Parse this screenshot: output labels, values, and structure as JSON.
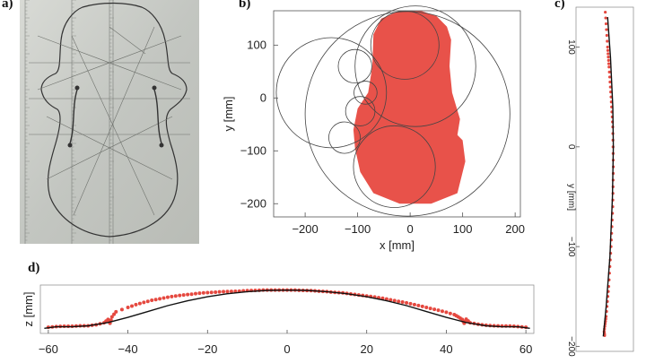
{
  "panels": {
    "a": {
      "label": "a)"
    },
    "b": {
      "label": "b)"
    },
    "c": {
      "label": "c)"
    },
    "d": {
      "label": "d)"
    }
  },
  "colors": {
    "data_red": "#e5483f",
    "fill_red": "#e8524a",
    "fit_line": "#111111",
    "paper": "#c9cbc6"
  },
  "chart_data": [
    {
      "id": "b",
      "type": "scatter",
      "description_kind": "shape-with-fitted-circles",
      "xlabel": "x [mm]",
      "ylabel": "y [mm]",
      "xlim": [
        -260,
        210
      ],
      "ylim": [
        -225,
        165
      ],
      "xticks": [
        -200,
        -100,
        0,
        100,
        200
      ],
      "yticks": [
        100,
        0,
        -100,
        -200
      ],
      "outline": [
        [
          -105,
          -95
        ],
        [
          -95,
          -140
        ],
        [
          -70,
          -180
        ],
        [
          -20,
          -200
        ],
        [
          40,
          -200
        ],
        [
          90,
          -180
        ],
        [
          105,
          -120
        ],
        [
          100,
          -80
        ],
        [
          90,
          -70
        ],
        [
          95,
          -40
        ],
        [
          80,
          10
        ],
        [
          75,
          60
        ],
        [
          78,
          110
        ],
        [
          70,
          135
        ],
        [
          50,
          155
        ],
        [
          20,
          165
        ],
        [
          -20,
          165
        ],
        [
          -55,
          150
        ],
        [
          -70,
          120
        ],
        [
          -72,
          60
        ],
        [
          -80,
          10
        ],
        [
          -100,
          -20
        ],
        [
          -108,
          -60
        ]
      ],
      "circles": [
        {
          "cx": -5,
          "cy": -30,
          "r": 195
        },
        {
          "cx": -150,
          "cy": 10,
          "r": 105
        },
        {
          "cx": 10,
          "cy": 60,
          "r": 115
        },
        {
          "cx": -10,
          "cy": 100,
          "r": 65
        },
        {
          "cx": -105,
          "cy": 60,
          "r": 32
        },
        {
          "cx": -85,
          "cy": 10,
          "r": 22
        },
        {
          "cx": -95,
          "cy": -25,
          "r": 28
        },
        {
          "cx": -125,
          "cy": -75,
          "r": 30
        },
        {
          "cx": -30,
          "cy": -130,
          "r": 78
        }
      ]
    },
    {
      "id": "c",
      "type": "line",
      "xlabel": "",
      "ylabel": "y [mm]",
      "ylim": [
        -205,
        140
      ],
      "xlim": [
        -1,
        1
      ],
      "yticks": [
        100,
        0,
        -100,
        -200
      ],
      "fit": {
        "x": [
          0.1,
          0.2,
          0.28,
          0.3,
          0.27,
          0.18,
          0.05,
          -0.05
        ],
        "y": [
          130,
          90,
          40,
          0,
          -50,
          -110,
          -160,
          -190
        ]
      },
      "points": {
        "x": [
          0.02,
          0.1,
          0.15,
          0.22,
          0.28,
          0.3,
          0.28,
          0.22,
          0.14,
          0.05,
          -0.02,
          0.0
        ],
        "y": [
          135,
          100,
          80,
          50,
          20,
          -20,
          -60,
          -100,
          -140,
          -170,
          -185,
          -190
        ]
      }
    },
    {
      "id": "d",
      "type": "line",
      "xlabel": "",
      "ylabel": "z [mm]",
      "xlim": [
        -62,
        62
      ],
      "ylim": [
        0,
        19
      ],
      "xticks": [
        -60,
        -40,
        -20,
        0,
        20,
        40,
        60
      ],
      "fit": {
        "x": [
          -61,
          -58,
          -54,
          -50,
          -45,
          -40,
          -35,
          -30,
          -25,
          -20,
          -15,
          -10,
          -5,
          0,
          5,
          10,
          15,
          20,
          25,
          30,
          35,
          40,
          45,
          50,
          54,
          58,
          61
        ],
        "z": [
          2.0,
          2.6,
          2.6,
          3.0,
          4.3,
          6.3,
          8.6,
          10.9,
          12.8,
          14.4,
          15.6,
          16.4,
          16.9,
          17.0,
          16.9,
          16.4,
          15.6,
          14.4,
          12.8,
          10.9,
          8.6,
          6.3,
          4.3,
          3.0,
          2.6,
          2.6,
          2.0
        ]
      },
      "points": {
        "x": [
          -60,
          -58,
          -56,
          -54,
          -52,
          -50,
          -48,
          -46,
          -45,
          -44.5,
          -44,
          -43,
          -40,
          -38,
          -36,
          -34,
          -32,
          -30,
          -28,
          -26,
          -24,
          -22,
          -20,
          -18,
          -16,
          -14,
          -12,
          -10,
          -8,
          -6,
          -4,
          -2,
          0,
          2,
          4,
          6,
          8,
          10,
          12,
          14,
          16,
          18,
          20,
          22,
          24,
          26,
          28,
          30,
          32,
          34,
          36,
          38,
          40,
          42,
          43,
          44,
          44.5,
          45,
          46,
          48,
          50,
          52,
          54,
          56,
          58,
          60
        ],
        "z": [
          2.4,
          2.7,
          2.8,
          2.8,
          3.0,
          3.0,
          3.4,
          4.2,
          5.5,
          4.0,
          6.5,
          8.5,
          10.2,
          11.3,
          12.2,
          13.0,
          13.6,
          14.2,
          14.7,
          15.1,
          15.4,
          15.8,
          16.0,
          16.2,
          16.4,
          16.5,
          16.6,
          16.8,
          16.9,
          17.0,
          17.0,
          17.0,
          17.0,
          17.0,
          16.9,
          16.8,
          16.6,
          16.4,
          16.1,
          15.9,
          15.5,
          15.1,
          14.7,
          14.3,
          13.8,
          13.2,
          12.6,
          12.0,
          11.3,
          10.6,
          9.8,
          9.1,
          8.3,
          7.4,
          6.5,
          5.5,
          4.0,
          5.6,
          4.2,
          3.6,
          3.2,
          3.0,
          2.9,
          2.9,
          2.7,
          2.4
        ]
      }
    }
  ]
}
